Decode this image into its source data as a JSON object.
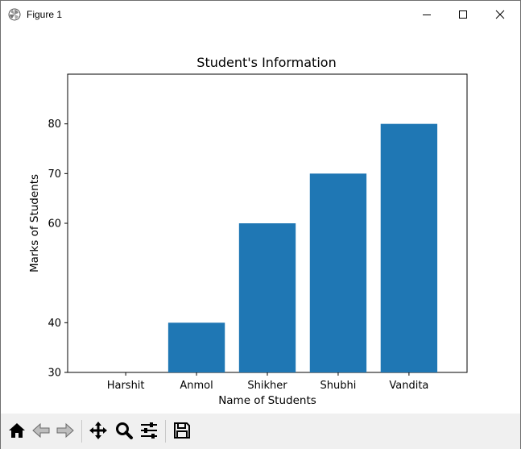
{
  "window": {
    "title": "Figure 1",
    "icons": {
      "app": "matplotlib-icon",
      "minimize": "minimize-icon",
      "maximize": "maximize-icon",
      "close": "close-icon"
    }
  },
  "toolbar": {
    "buttons": [
      {
        "name": "home-button",
        "icon": "home-icon"
      },
      {
        "name": "back-button",
        "icon": "arrow-left-icon"
      },
      {
        "name": "forward-button",
        "icon": "arrow-right-icon"
      },
      {
        "name": "pan-button",
        "icon": "move-icon"
      },
      {
        "name": "zoom-button",
        "icon": "magnifier-icon"
      },
      {
        "name": "configure-subplots-button",
        "icon": "sliders-icon"
      },
      {
        "name": "save-button",
        "icon": "floppy-disk-icon"
      }
    ]
  },
  "chart_data": {
    "type": "bar",
    "title": "Student's Information",
    "xlabel": "Name of Students",
    "ylabel": "Marks of Students",
    "categories": [
      "Harshit",
      "Anmol",
      "Shikher",
      "Shubhi",
      "Vandita"
    ],
    "values": [
      30,
      40,
      60,
      70,
      80
    ],
    "ylim": [
      30,
      90
    ],
    "yticks": [
      30,
      40,
      60,
      70,
      80
    ],
    "bar_color": "#1f77b4",
    "grid": false,
    "legend": "none"
  }
}
